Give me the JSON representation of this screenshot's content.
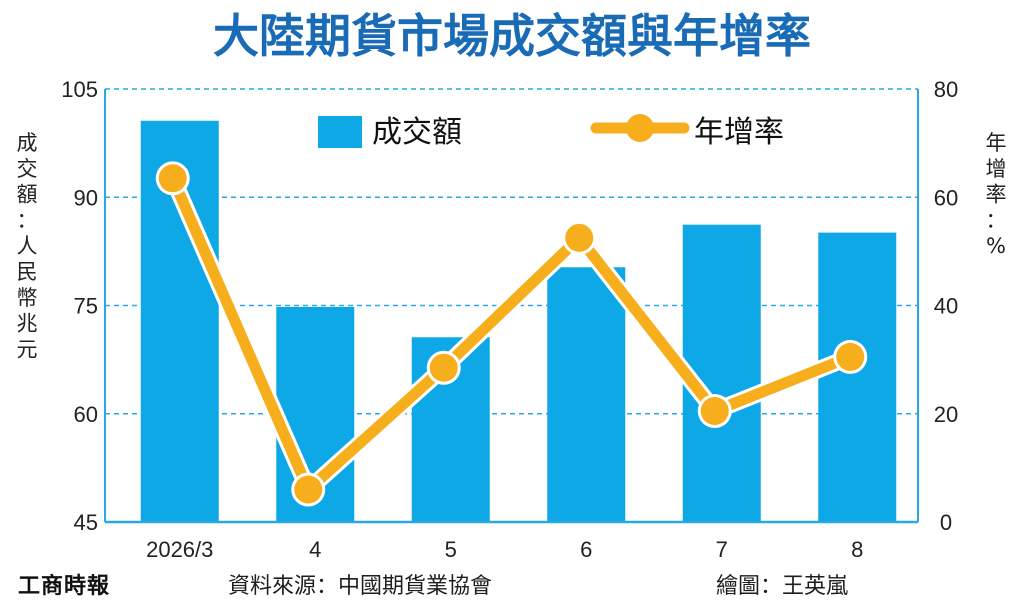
{
  "chart_data": {
    "type": "bar",
    "title": "大陸期貨市場成交額與年增率",
    "categories": [
      "2026/3",
      "4",
      "5",
      "6",
      "7",
      "8"
    ],
    "series": [
      {
        "name": "成交額",
        "type": "bar",
        "axis": "left",
        "values": [
          100.6,
          74.8,
          70.6,
          80.3,
          86.2,
          85.1
        ],
        "color": "#0ea8e6"
      },
      {
        "name": "年增率",
        "type": "line",
        "axis": "right",
        "values": [
          63.5,
          6.0,
          28.5,
          52.5,
          20.5,
          30.5
        ],
        "color": "#f6ae1c"
      }
    ],
    "ylabel": "成交額：人民幣兆元",
    "y2label": "年增率：%",
    "ylim": [
      45,
      105
    ],
    "y2lim": [
      0,
      80
    ],
    "yticks": [
      "105",
      "90",
      "75",
      "60",
      "45"
    ],
    "y2ticks": [
      "80",
      "60",
      "40",
      "20",
      "0"
    ],
    "grid": true,
    "legend": "top"
  },
  "footer": {
    "logo": "工商時報",
    "source": "資料來源：中國期貨業協會",
    "credit": "繪圖：王英嵐"
  }
}
